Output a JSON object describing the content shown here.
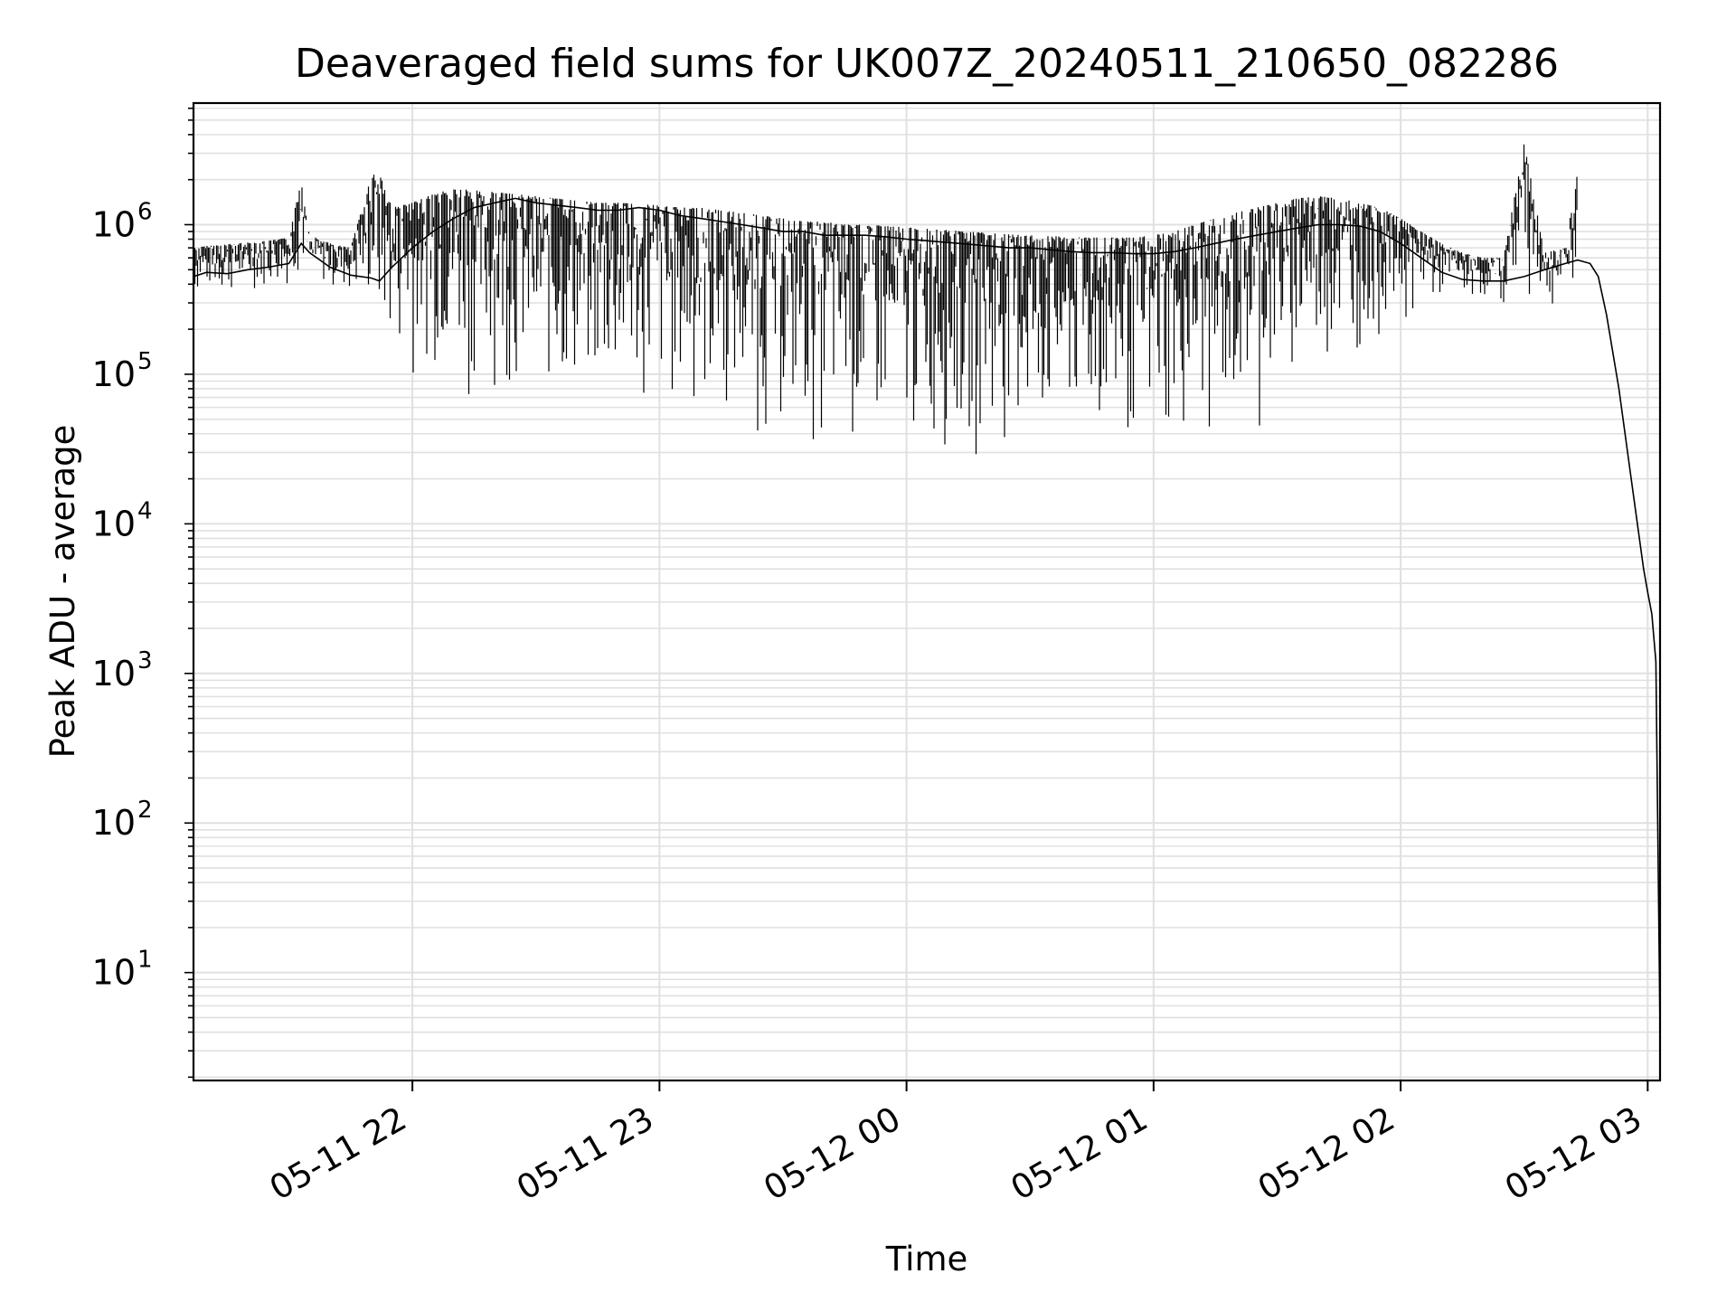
{
  "chart_data": {
    "type": "line",
    "title": "Deaveraged field sums for UK007Z_20240511_210650_082286",
    "xlabel": "Time",
    "ylabel": "Peak ADU - average",
    "yscale": "log",
    "ylim": [
      1.9,
      6500000
    ],
    "xlim": [
      "2024-05-11 21:06:50",
      "2024-05-12 03:03:00"
    ],
    "x_ticks": [
      "2024-05-11 22:00",
      "2024-05-11 23:00",
      "2024-05-12 00:00",
      "2024-05-12 01:00",
      "2024-05-12 02:00",
      "2024-05-12 03:00"
    ],
    "x_tick_labels": [
      "05-11 22",
      "05-11 23",
      "05-12 00",
      "05-12 01",
      "05-12 02",
      "05-12 03"
    ],
    "y_ticks": [
      10,
      100,
      1000,
      10000,
      100000,
      1000000
    ],
    "y_tick_labels": [
      {
        "base": "10",
        "exp": "1"
      },
      {
        "base": "10",
        "exp": "2"
      },
      {
        "base": "10",
        "exp": "3"
      },
      {
        "base": "10",
        "exp": "4"
      },
      {
        "base": "10",
        "exp": "5"
      },
      {
        "base": "10",
        "exp": "6"
      }
    ],
    "grid": true,
    "grid_color": "#e0e0e0",
    "line_color": "#000000",
    "series": [
      {
        "x": [
          "2024-05-11 21:06:50",
          "2024-05-11 21:10",
          "2024-05-11 21:15",
          "2024-05-11 21:20",
          "2024-05-11 21:25",
          "2024-05-11 21:30",
          "2024-05-11 21:33",
          "2024-05-11 21:35",
          "2024-05-11 21:40",
          "2024-05-11 21:45",
          "2024-05-11 21:50",
          "2024-05-11 21:52",
          "2024-05-11 21:55",
          "2024-05-11 22:00",
          "2024-05-11 22:05",
          "2024-05-11 22:10",
          "2024-05-11 22:15",
          "2024-05-11 22:20",
          "2024-05-11 22:25",
          "2024-05-11 22:30",
          "2024-05-11 22:35",
          "2024-05-11 22:40",
          "2024-05-11 22:45",
          "2024-05-11 22:50",
          "2024-05-11 22:55",
          "2024-05-11 23:00",
          "2024-05-11 23:05",
          "2024-05-11 23:10",
          "2024-05-11 23:15",
          "2024-05-11 23:20",
          "2024-05-11 23:25",
          "2024-05-11 23:30",
          "2024-05-11 23:35",
          "2024-05-11 23:40",
          "2024-05-11 23:45",
          "2024-05-11 23:50",
          "2024-05-11 23:55",
          "2024-05-12 00:00",
          "2024-05-12 00:05",
          "2024-05-12 00:10",
          "2024-05-12 00:15",
          "2024-05-12 00:20",
          "2024-05-12 00:25",
          "2024-05-12 00:30",
          "2024-05-12 00:35",
          "2024-05-12 00:40",
          "2024-05-12 00:45",
          "2024-05-12 00:50",
          "2024-05-12 00:55",
          "2024-05-12 01:00",
          "2024-05-12 01:05",
          "2024-05-12 01:10",
          "2024-05-12 01:15",
          "2024-05-12 01:20",
          "2024-05-12 01:25",
          "2024-05-12 01:30",
          "2024-05-12 01:35",
          "2024-05-12 01:40",
          "2024-05-12 01:45",
          "2024-05-12 01:50",
          "2024-05-12 01:55",
          "2024-05-12 02:00",
          "2024-05-12 02:05",
          "2024-05-12 02:10",
          "2024-05-12 02:15",
          "2024-05-12 02:20",
          "2024-05-12 02:25",
          "2024-05-12 02:30",
          "2024-05-12 02:35",
          "2024-05-12 02:40",
          "2024-05-12 02:43",
          "2024-05-12 02:46",
          "2024-05-12 02:48",
          "2024-05-12 02:50",
          "2024-05-12 02:53",
          "2024-05-12 02:56",
          "2024-05-12 02:59",
          "2024-05-12 03:00",
          "2024-05-12 03:01",
          "2024-05-12 03:02",
          "2024-05-12 03:03"
        ],
        "y": [
          450000,
          480000,
          470000,
          500000,
          520000,
          550000,
          750000,
          650000,
          520000,
          460000,
          440000,
          420000,
          520000,
          700000,
          900000,
          1100000,
          1300000,
          1400000,
          1500000,
          1400000,
          1350000,
          1300000,
          1250000,
          1250000,
          1300000,
          1250000,
          1150000,
          1100000,
          1050000,
          1000000,
          950000,
          900000,
          900000,
          850000,
          850000,
          850000,
          830000,
          800000,
          780000,
          760000,
          740000,
          720000,
          700000,
          700000,
          680000,
          660000,
          650000,
          650000,
          640000,
          640000,
          660000,
          700000,
          750000,
          800000,
          850000,
          900000,
          950000,
          1000000,
          1000000,
          980000,
          900000,
          750000,
          600000,
          480000,
          430000,
          420000,
          420000,
          450000,
          500000,
          550000,
          580000,
          550000,
          450000,
          250000,
          80000,
          20000,
          5000,
          3500,
          2500,
          1200,
          4
        ]
      }
    ],
    "peak_range": {
      "x": [
        "2024-05-11 21:06:50",
        "2024-05-11 21:10",
        "2024-05-11 21:15",
        "2024-05-11 21:20",
        "2024-05-11 21:25",
        "2024-05-11 21:30",
        "2024-05-11 21:33",
        "2024-05-11 21:35",
        "2024-05-11 21:40",
        "2024-05-11 21:45",
        "2024-05-11 21:50",
        "2024-05-11 21:52",
        "2024-05-11 21:55",
        "2024-05-11 22:00",
        "2024-05-11 22:05",
        "2024-05-11 22:10",
        "2024-05-11 22:15",
        "2024-05-11 22:20",
        "2024-05-11 22:25",
        "2024-05-11 22:30",
        "2024-05-11 22:35",
        "2024-05-11 22:40",
        "2024-05-11 22:45",
        "2024-05-11 22:50",
        "2024-05-11 22:55",
        "2024-05-11 23:00",
        "2024-05-11 23:05",
        "2024-05-11 23:10",
        "2024-05-11 23:15",
        "2024-05-11 23:20",
        "2024-05-11 23:25",
        "2024-05-11 23:30",
        "2024-05-11 23:35",
        "2024-05-11 23:40",
        "2024-05-11 23:45",
        "2024-05-11 23:50",
        "2024-05-11 23:55",
        "2024-05-12 00:00",
        "2024-05-12 00:05",
        "2024-05-12 00:10",
        "2024-05-12 00:15",
        "2024-05-12 00:20",
        "2024-05-12 00:25",
        "2024-05-12 00:30",
        "2024-05-12 00:35",
        "2024-05-12 00:40",
        "2024-05-12 00:45",
        "2024-05-12 00:50",
        "2024-05-12 00:55",
        "2024-05-12 01:00",
        "2024-05-12 01:05",
        "2024-05-12 01:10",
        "2024-05-12 01:15",
        "2024-05-12 01:20",
        "2024-05-12 01:25",
        "2024-05-12 01:30",
        "2024-05-12 01:35",
        "2024-05-12 01:40",
        "2024-05-12 01:45",
        "2024-05-12 01:50",
        "2024-05-12 01:55",
        "2024-05-12 02:00",
        "2024-05-12 02:05",
        "2024-05-12 02:10",
        "2024-05-12 02:15",
        "2024-05-12 02:20",
        "2024-05-12 02:25",
        "2024-05-12 02:30",
        "2024-05-12 02:35",
        "2024-05-12 02:40",
        "2024-05-12 02:43"
      ],
      "low": [
        300000,
        320000,
        310000,
        350000,
        360000,
        380000,
        400000,
        400000,
        350000,
        320000,
        200000,
        130000,
        110000,
        100000,
        90000,
        80000,
        70000,
        70000,
        60000,
        55000,
        50000,
        48000,
        46000,
        45000,
        44000,
        43000,
        42000,
        40000,
        38000,
        35000,
        32000,
        30000,
        28000,
        26000,
        25000,
        24000,
        24000,
        24000,
        25000,
        25000,
        25000,
        25000,
        25000,
        25000,
        25000,
        25000,
        25000,
        25000,
        24000,
        24000,
        25000,
        25000,
        27000,
        30000,
        40000,
        55000,
        70000,
        90000,
        110000,
        130000,
        160000,
        200000,
        250000,
        280000,
        300000,
        300000,
        280000,
        270000,
        260000,
        280000,
        300000
      ],
      "high": [
        700000,
        720000,
        740000,
        760000,
        780000,
        820000,
        2000000,
        850000,
        750000,
        700000,
        2100000,
        2300000,
        1300000,
        1400000,
        1600000,
        1750000,
        1700000,
        1650000,
        1600000,
        1550000,
        1500000,
        1450000,
        1400000,
        1400000,
        1380000,
        1350000,
        1300000,
        1300000,
        1250000,
        1200000,
        1150000,
        1100000,
        1050000,
        1050000,
        1000000,
        1000000,
        980000,
        960000,
        940000,
        920000,
        900000,
        880000,
        860000,
        850000,
        840000,
        830000,
        820000,
        820000,
        820000,
        850000,
        900000,
        1000000,
        1100000,
        1200000,
        1300000,
        1400000,
        1500000,
        1550000,
        1500000,
        1400000,
        1300000,
        1100000,
        900000,
        750000,
        650000,
        600000,
        600000,
        3500000,
        650000,
        700000,
        2400000
      ]
    }
  }
}
